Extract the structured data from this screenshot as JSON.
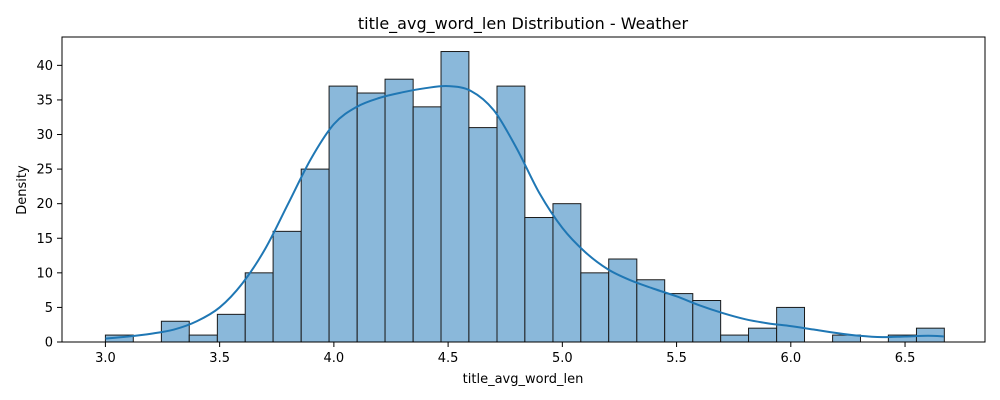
{
  "chart_data": {
    "type": "bar",
    "title": "title_avg_word_len Distribution - Weather",
    "xlabel": "title_avg_word_len",
    "ylabel": "Density",
    "xlim": [
      2.81,
      6.85
    ],
    "ylim": [
      0,
      44.1
    ],
    "xticks": [
      3.0,
      3.5,
      4.0,
      4.5,
      5.0,
      5.5,
      6.0,
      6.5
    ],
    "xtick_labels": [
      "3.0",
      "3.5",
      "4.0",
      "4.5",
      "5.0",
      "5.5",
      "6.0",
      "6.5"
    ],
    "yticks": [
      0,
      5,
      10,
      15,
      20,
      25,
      30,
      35,
      40
    ],
    "ytick_labels": [
      "0",
      "5",
      "10",
      "15",
      "20",
      "25",
      "30",
      "35",
      "40"
    ],
    "grid": false,
    "legend": "none",
    "bar_color": "#8ab8da",
    "bar_edge_color": "#1a1a1a",
    "kde_color": "#1f77b4",
    "bins": [
      {
        "x0": 3.0,
        "x1": 3.122,
        "count": 1
      },
      {
        "x0": 3.122,
        "x1": 3.245,
        "count": 0
      },
      {
        "x0": 3.245,
        "x1": 3.367,
        "count": 3
      },
      {
        "x0": 3.367,
        "x1": 3.49,
        "count": 1
      },
      {
        "x0": 3.49,
        "x1": 3.612,
        "count": 4
      },
      {
        "x0": 3.612,
        "x1": 3.734,
        "count": 10
      },
      {
        "x0": 3.734,
        "x1": 3.857,
        "count": 16
      },
      {
        "x0": 3.857,
        "x1": 3.979,
        "count": 25
      },
      {
        "x0": 3.979,
        "x1": 4.102,
        "count": 37
      },
      {
        "x0": 4.102,
        "x1": 4.224,
        "count": 36
      },
      {
        "x0": 4.224,
        "x1": 4.347,
        "count": 38
      },
      {
        "x0": 4.347,
        "x1": 4.469,
        "count": 34
      },
      {
        "x0": 4.469,
        "x1": 4.591,
        "count": 42
      },
      {
        "x0": 4.591,
        "x1": 4.714,
        "count": 31
      },
      {
        "x0": 4.714,
        "x1": 4.836,
        "count": 37
      },
      {
        "x0": 4.836,
        "x1": 4.959,
        "count": 18
      },
      {
        "x0": 4.959,
        "x1": 5.081,
        "count": 20
      },
      {
        "x0": 5.081,
        "x1": 5.203,
        "count": 10
      },
      {
        "x0": 5.203,
        "x1": 5.326,
        "count": 12
      },
      {
        "x0": 5.326,
        "x1": 5.448,
        "count": 9
      },
      {
        "x0": 5.448,
        "x1": 5.571,
        "count": 7
      },
      {
        "x0": 5.571,
        "x1": 5.693,
        "count": 6
      },
      {
        "x0": 5.693,
        "x1": 5.815,
        "count": 1
      },
      {
        "x0": 5.815,
        "x1": 5.938,
        "count": 2
      },
      {
        "x0": 5.938,
        "x1": 6.06,
        "count": 5
      },
      {
        "x0": 6.06,
        "x1": 6.183,
        "count": 0
      },
      {
        "x0": 6.183,
        "x1": 6.305,
        "count": 1
      },
      {
        "x0": 6.305,
        "x1": 6.427,
        "count": 0
      },
      {
        "x0": 6.427,
        "x1": 6.55,
        "count": 1
      },
      {
        "x0": 6.55,
        "x1": 6.672,
        "count": 2
      }
    ],
    "kde": {
      "x": [
        3.0,
        3.1,
        3.2,
        3.3,
        3.4,
        3.5,
        3.6,
        3.7,
        3.8,
        3.9,
        4.0,
        4.1,
        4.2,
        4.3,
        4.4,
        4.5,
        4.6,
        4.7,
        4.8,
        4.9,
        5.0,
        5.1,
        5.2,
        5.3,
        5.4,
        5.5,
        5.6,
        5.7,
        5.8,
        5.9,
        6.0,
        6.1,
        6.2,
        6.3,
        6.4,
        6.5,
        6.6,
        6.67
      ],
      "y": [
        0.5,
        0.8,
        1.2,
        1.8,
        3.0,
        5.0,
        8.5,
        13.5,
        20.0,
        26.5,
        31.5,
        34.0,
        35.3,
        36.1,
        36.7,
        37.0,
        36.3,
        33.5,
        28.0,
        21.5,
        16.5,
        13.0,
        10.5,
        8.9,
        7.7,
        6.6,
        5.3,
        4.2,
        3.3,
        2.7,
        2.3,
        1.8,
        1.3,
        0.9,
        0.7,
        0.8,
        0.9,
        0.8
      ]
    }
  }
}
